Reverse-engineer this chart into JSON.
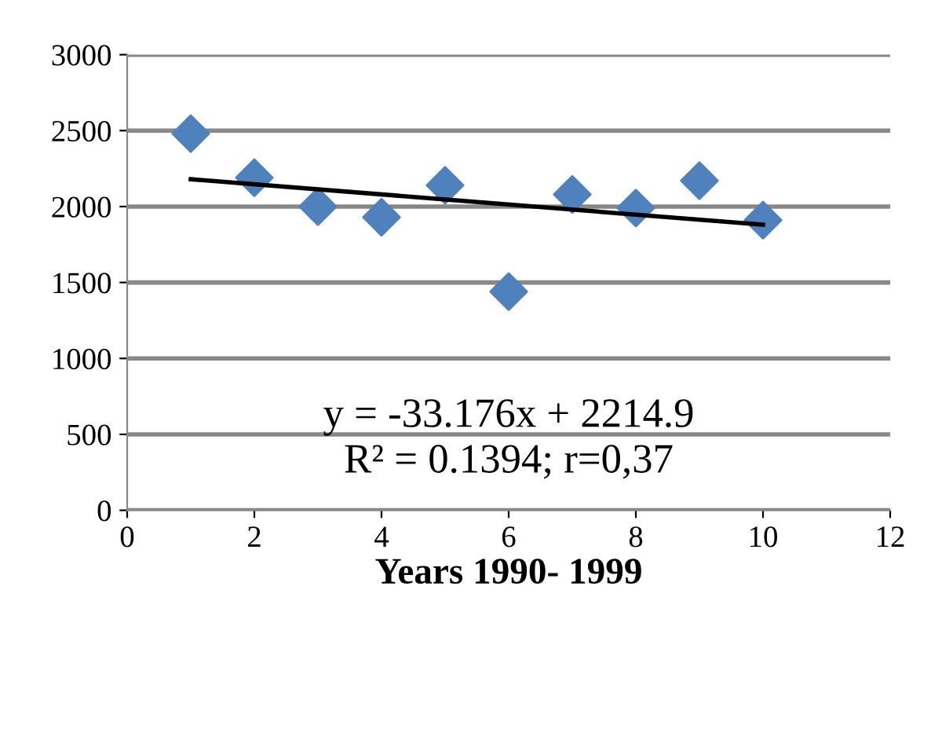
{
  "chart_data": {
    "type": "scatter",
    "xlabel": "Years 1990- 1999",
    "x": [
      1,
      2,
      3,
      4,
      5,
      6,
      7,
      8,
      9,
      10
    ],
    "series": [
      {
        "color": "#4f81bd",
        "marker": "diamond",
        "values": [
          2480,
          2190,
          2000,
          1930,
          2140,
          1440,
          2080,
          1990,
          2170,
          1910
        ]
      },
      {
        "type": "line",
        "color": "#000000",
        "marker": "none",
        "x": [
          1,
          10
        ],
        "values": [
          2180,
          1880
        ]
      }
    ],
    "annotations": [
      "y = -33.176x + 2214.9",
      "R² = 0.1394; r=0,37"
    ],
    "xlim": [
      0,
      12
    ],
    "xticks": [
      0,
      2,
      4,
      6,
      8,
      10,
      12
    ],
    "ylim": [
      0,
      3000
    ],
    "yticks": [
      0,
      500,
      1000,
      1500,
      2000,
      2500,
      3000
    ],
    "grid": "y",
    "legend": false
  }
}
